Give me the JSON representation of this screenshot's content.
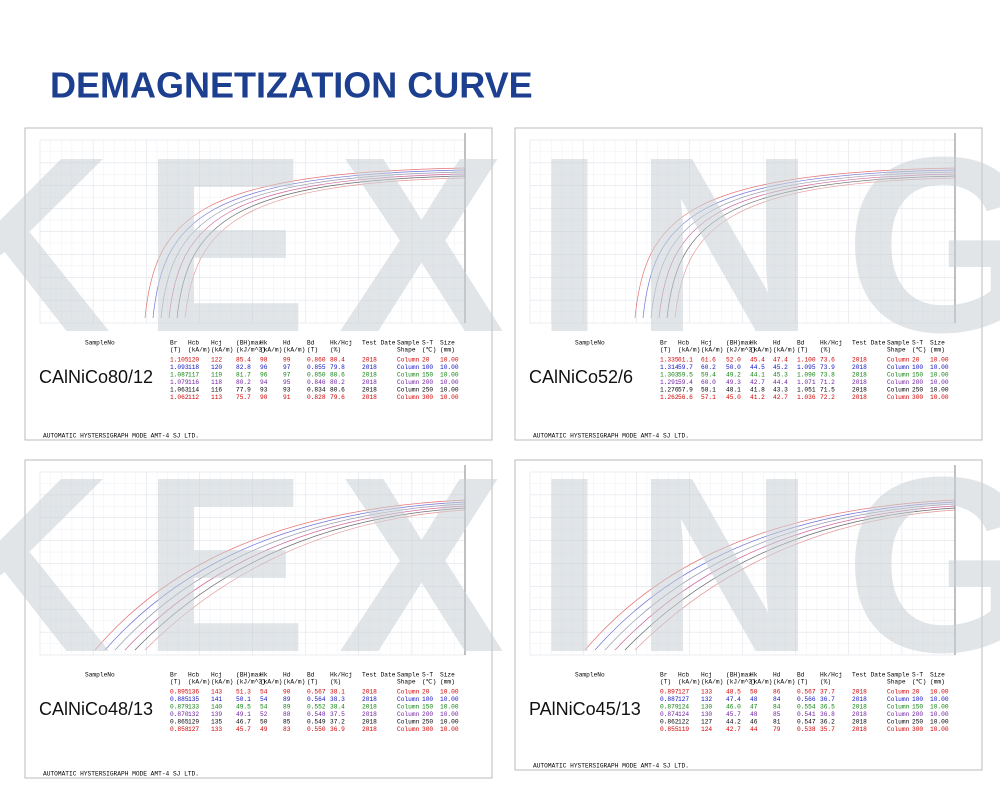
{
  "header": {
    "title": "DEMAGNETIZATION CURVE"
  },
  "watermark": "KEXING",
  "footer": "AUTOMATIC  HYSTERSIGRAPH  MODE  AMT-4     SJ  LTD.",
  "columns": [
    [
      "SampleNo",
      ""
    ],
    [
      "Br",
      "(T)"
    ],
    [
      "Hcb",
      "(kA/m)"
    ],
    [
      "Hcj",
      "(kA/m)"
    ],
    [
      "(BH)max",
      "(kJ/m^3)"
    ],
    [
      "Hk",
      "(kA/m)"
    ],
    [
      "Hd",
      "(kA/m)"
    ],
    [
      "Bd",
      "(T)"
    ],
    [
      "Hk/Hcj",
      "(%)"
    ],
    [
      "Test Date",
      ""
    ],
    [
      "Sample",
      "Shape"
    ],
    [
      "S-T",
      "(℃)"
    ],
    [
      "Size",
      "(mm)"
    ]
  ],
  "row_colors": [
    "#d00000",
    "#1010c0",
    "#108010",
    "#7020a0",
    "#000000",
    "#d00000"
  ],
  "panels": [
    {
      "label": "CAlNiCo80/12",
      "rows": [
        [
          "1.105",
          "120",
          "122",
          "85.4",
          "98",
          "99",
          "0.860",
          "80.4",
          "2018",
          "Column",
          "20",
          "10.00"
        ],
        [
          "1.093",
          "118",
          "120",
          "82.8",
          "96",
          "97",
          "0.855",
          "79.8",
          "2018",
          "Column",
          "100",
          "10.00"
        ],
        [
          "1.087",
          "117",
          "119",
          "81.7",
          "96",
          "97",
          "0.850",
          "80.6",
          "2018",
          "Column",
          "150",
          "10.00"
        ],
        [
          "1.079",
          "116",
          "118",
          "80.2",
          "94",
          "95",
          "0.846",
          "80.2",
          "2018",
          "Column",
          "200",
          "10.00"
        ],
        [
          "1.063",
          "114",
          "116",
          "77.9",
          "93",
          "93",
          "0.834",
          "80.6",
          "2018",
          "Column",
          "250",
          "10.00"
        ],
        [
          "1.062",
          "112",
          "113",
          "75.7",
          "90",
          "91",
          "0.828",
          "79.6",
          "2018",
          "Column",
          "300",
          "10.00"
        ]
      ]
    },
    {
      "label": "CAlNiCo52/6",
      "rows": [
        [
          "1.335",
          "61.1",
          "61.6",
          "52.0",
          "45.4",
          "47.4",
          "1.100",
          "73.6",
          "2018",
          "Column",
          "20",
          "10.00"
        ],
        [
          "1.314",
          "59.7",
          "60.2",
          "50.0",
          "44.5",
          "45.2",
          "1.095",
          "73.9",
          "2018",
          "Column",
          "100",
          "10.00"
        ],
        [
          "1.303",
          "59.5",
          "59.4",
          "49.2",
          "44.1",
          "45.3",
          "1.090",
          "73.8",
          "2018",
          "Column",
          "150",
          "10.00"
        ],
        [
          "1.291",
          "59.4",
          "60.0",
          "49.3",
          "42.7",
          "44.4",
          "1.071",
          "71.2",
          "2018",
          "Column",
          "200",
          "10.00"
        ],
        [
          "1.276",
          "57.9",
          "58.1",
          "48.1",
          "41.8",
          "43.3",
          "1.051",
          "71.5",
          "2018",
          "Column",
          "250",
          "10.00"
        ],
        [
          "1.262",
          "56.6",
          "57.1",
          "45.0",
          "41.2",
          "42.7",
          "1.036",
          "72.2",
          "2018",
          "Column",
          "300",
          "10.00"
        ]
      ]
    },
    {
      "label": "CAlNiCo48/13",
      "rows": [
        [
          "0.895",
          "136",
          "143",
          "51.3",
          "54",
          "90",
          "0.567",
          "38.1",
          "2018",
          "Column",
          "20",
          "10.00"
        ],
        [
          "0.885",
          "135",
          "141",
          "50.1",
          "54",
          "89",
          "0.564",
          "38.3",
          "2018",
          "Column",
          "100",
          "10.00"
        ],
        [
          "0.879",
          "133",
          "140",
          "49.5",
          "54",
          "89",
          "0.552",
          "38.4",
          "2018",
          "Column",
          "150",
          "10.00"
        ],
        [
          "0.870",
          "132",
          "139",
          "49.1",
          "52",
          "88",
          "0.548",
          "37.5",
          "2018",
          "Column",
          "200",
          "10.00"
        ],
        [
          "0.865",
          "129",
          "135",
          "46.7",
          "50",
          "85",
          "0.549",
          "37.2",
          "2018",
          "Column",
          "250",
          "10.00"
        ],
        [
          "0.858",
          "127",
          "133",
          "45.7",
          "49",
          "83",
          "0.550",
          "36.9",
          "2018",
          "Column",
          "300",
          "10.00"
        ]
      ]
    },
    {
      "label": "PAlNiCo45/13",
      "rows": [
        [
          "0.897",
          "127",
          "133",
          "48.5",
          "50",
          "86",
          "0.567",
          "37.7",
          "2018",
          "Column",
          "20",
          "10.00"
        ],
        [
          "0.887",
          "127",
          "132",
          "47.4",
          "48",
          "84",
          "0.566",
          "36.7",
          "2018",
          "Column",
          "100",
          "10.00"
        ],
        [
          "0.879",
          "124",
          "130",
          "46.0",
          "47",
          "84",
          "0.554",
          "36.5",
          "2018",
          "Column",
          "150",
          "10.00"
        ],
        [
          "0.874",
          "124",
          "130",
          "45.7",
          "48",
          "85",
          "0.541",
          "36.8",
          "2018",
          "Column",
          "200",
          "10.00"
        ],
        [
          "0.862",
          "122",
          "127",
          "44.2",
          "46",
          "81",
          "0.547",
          "36.2",
          "2018",
          "Column",
          "250",
          "10.00"
        ],
        [
          "0.855",
          "119",
          "124",
          "42.7",
          "44",
          "79",
          "0.538",
          "35.7",
          "2018",
          "Column",
          "300",
          "10.00"
        ]
      ]
    }
  ]
}
